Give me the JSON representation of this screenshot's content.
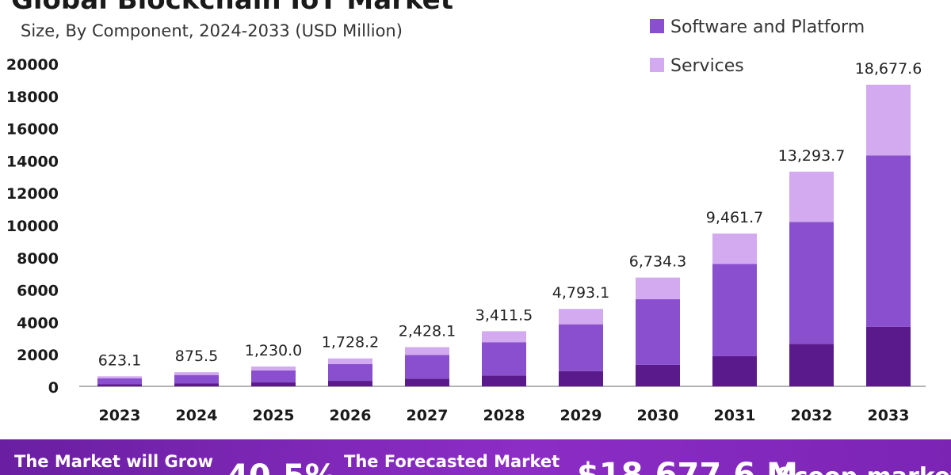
{
  "header": {
    "title": "Global Blockchain IoT Market",
    "subtitle": "Size, By Component, 2024-2033 (USD Million)"
  },
  "legend": {
    "items": [
      {
        "label": "Software and Platform",
        "color": "#8a4fcf"
      },
      {
        "label": "Services",
        "color": "#d3aaf0"
      }
    ]
  },
  "colors": {
    "hardware": "#5b1a8b",
    "software": "#8a4fcf",
    "services": "#d3aaf0",
    "axis": "#999999",
    "footer": "#7b24b4"
  },
  "footer": {
    "grow_label": "The Market will Grow",
    "cagr": "40.5%",
    "forecast_label": "The Forecasted Market",
    "forecast_value": "$18,677.6 M",
    "brand": "Scoop.market"
  },
  "chart_data": {
    "type": "bar",
    "stacked": true,
    "categories": [
      "2023",
      "2024",
      "2025",
      "2026",
      "2027",
      "2028",
      "2029",
      "2030",
      "2031",
      "2032",
      "2033"
    ],
    "totals_labels": [
      "623.1",
      "875.5",
      "1,230.0",
      "1,728.2",
      "2,428.1",
      "3,411.5",
      "4,793.1",
      "6,734.3",
      "9,461.7",
      "13,293.7",
      "18,677.6"
    ],
    "series": [
      {
        "values": [
          122,
          172,
          242,
          340,
          478,
          672,
          945,
          1327,
          1865,
          2620,
          3680
        ]
      },
      {
        "name": "Software and Platform",
        "values": [
          377,
          530,
          744,
          1045,
          1468,
          2062,
          2896,
          4069,
          5717,
          7552,
          10620
        ]
      },
      {
        "name": "Services",
        "values": [
          124.1,
          173.5,
          244.0,
          343.2,
          482.1,
          677.5,
          952.1,
          1338.3,
          1879.7,
          3121.7,
          4377.6
        ]
      }
    ],
    "ylim": [
      0,
      20000
    ],
    "yticks": [
      0,
      2000,
      4000,
      6000,
      8000,
      10000,
      12000,
      14000,
      16000,
      18000,
      20000
    ],
    "grid": false,
    "legend_position": "top-right"
  }
}
